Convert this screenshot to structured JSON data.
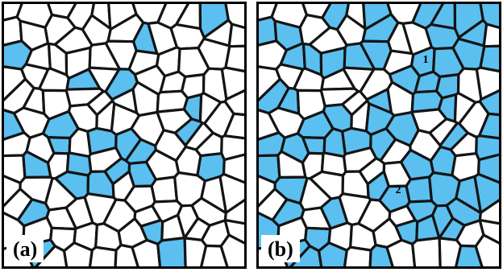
{
  "panels": [
    {
      "id": "a",
      "label": "(a)",
      "fraction_blue": 0.22,
      "markers": []
    },
    {
      "id": "b",
      "label": "(b)",
      "fraction_blue": 0.45,
      "markers": [
        "1",
        "2"
      ]
    }
  ],
  "colors": {
    "cell_fill": "#ffffff",
    "highlight_fill": "#5bc0f0",
    "boundary": "#141414",
    "frame": "#000000"
  }
}
